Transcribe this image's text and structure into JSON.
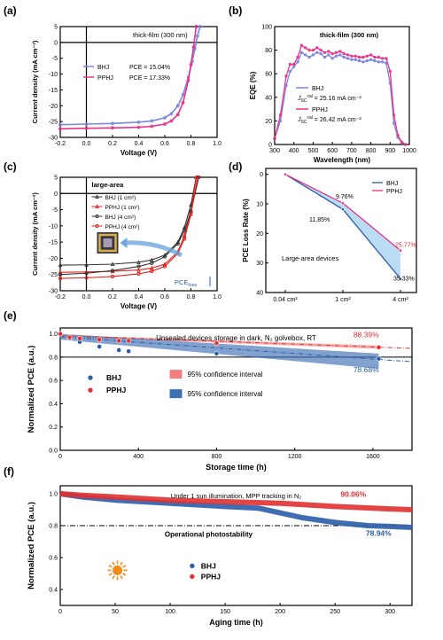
{
  "chart_data": [
    {
      "panel": "(a)",
      "type": "line",
      "title": "thick-film (300 nm)",
      "xlabel": "Voltage (V)",
      "ylabel": "Current density (mA cm⁻²)",
      "xlim": [
        -0.2,
        1.0
      ],
      "ylim": [
        -30,
        5
      ],
      "xticks": [
        "-0.2",
        "0.0",
        "0.2",
        "0.4",
        "0.6",
        "0.8",
        "1.0"
      ],
      "yticks": [
        "5",
        "0",
        "-5",
        "-10",
        "-15",
        "-20",
        "-25",
        "-30"
      ],
      "legend": [
        {
          "name": "BHJ",
          "pce": "PCE = 15.04%"
        },
        {
          "name": "PPHJ",
          "pce": "PCE = 17.33%"
        }
      ],
      "series": [
        {
          "name": "BHJ",
          "color": "#7b86e0",
          "x": [
            -0.2,
            0.0,
            0.2,
            0.4,
            0.5,
            0.6,
            0.65,
            0.7,
            0.74,
            0.78,
            0.81,
            0.83,
            0.85,
            0.87
          ],
          "y": [
            -26.0,
            -25.8,
            -25.6,
            -25.2,
            -24.8,
            -23.8,
            -22.5,
            -20.0,
            -16.5,
            -11.0,
            -6.0,
            -2.0,
            2.0,
            5.0
          ]
        },
        {
          "name": "PPHJ",
          "color": "#e8338a",
          "x": [
            -0.2,
            0.0,
            0.2,
            0.4,
            0.5,
            0.6,
            0.65,
            0.7,
            0.74,
            0.78,
            0.8,
            0.82,
            0.84
          ],
          "y": [
            -27.3,
            -27.1,
            -27.0,
            -26.8,
            -26.5,
            -25.8,
            -24.8,
            -22.8,
            -19.0,
            -12.0,
            -7.0,
            -1.5,
            5.0
          ]
        }
      ]
    },
    {
      "panel": "(b)",
      "type": "line",
      "title": "thick-film (300 nm)",
      "xlabel": "Wavelength (nm)",
      "ylabel": "EQE (%)",
      "xlim": [
        300,
        1000
      ],
      "ylim": [
        0,
        100
      ],
      "xticks": [
        "300",
        "400",
        "500",
        "600",
        "700",
        "800",
        "900",
        "1000"
      ],
      "yticks": [
        "0",
        "20",
        "40",
        "60",
        "80",
        "100"
      ],
      "legend": [
        {
          "name": "BHJ",
          "jsc_label": "J",
          "jsc_sub": "SC",
          "jsc_sup": "cal",
          "jsc_value": "= 25.16 mA cm⁻²"
        },
        {
          "name": "PPHJ",
          "jsc_label": "J",
          "jsc_sub": "SC",
          "jsc_sup": "cal",
          "jsc_value": "= 26.42 mA cm⁻²"
        }
      ],
      "series": [
        {
          "name": "BHJ",
          "color": "#7b86e0",
          "x": [
            300,
            330,
            360,
            380,
            400,
            420,
            440,
            460,
            480,
            500,
            520,
            540,
            560,
            580,
            600,
            620,
            640,
            660,
            680,
            700,
            720,
            740,
            760,
            780,
            800,
            820,
            840,
            860,
            880,
            900,
            920,
            940,
            960,
            980
          ],
          "y": [
            5,
            20,
            50,
            62,
            66,
            70,
            78,
            76,
            74,
            76,
            78,
            77,
            74,
            76,
            73,
            75,
            76,
            74,
            73,
            72,
            72,
            71,
            70,
            71,
            72,
            71,
            70,
            70,
            69,
            52,
            18,
            6,
            2,
            0
          ]
        },
        {
          "name": "PPHJ",
          "color": "#e8338a",
          "x": [
            300,
            330,
            360,
            380,
            400,
            420,
            440,
            460,
            480,
            500,
            520,
            540,
            560,
            580,
            600,
            620,
            640,
            660,
            680,
            700,
            720,
            740,
            760,
            780,
            800,
            820,
            840,
            860,
            880,
            900,
            920,
            940,
            960,
            980
          ],
          "y": [
            5,
            25,
            58,
            68,
            68,
            74,
            84,
            82,
            80,
            80,
            82,
            80,
            78,
            79,
            77,
            78,
            79,
            77,
            76,
            75,
            75,
            74,
            74,
            75,
            76,
            74,
            74,
            73,
            73,
            62,
            25,
            8,
            2,
            0
          ]
        }
      ]
    },
    {
      "panel": "(c)",
      "type": "line",
      "title": "large-area",
      "xlabel": "Voltage (V)",
      "ylabel": "Current density (mA cm⁻²)",
      "xlim": [
        -0.2,
        1.0
      ],
      "ylim": [
        -30,
        5
      ],
      "xticks": [
        "-0.2",
        "0.0",
        "0.2",
        "0.4",
        "0.6",
        "0.8",
        "1.0"
      ],
      "yticks": [
        "5",
        "0",
        "-5",
        "-10",
        "-15",
        "-20",
        "-25",
        "-30"
      ],
      "annotation": {
        "text": "PCE",
        "sub": "loss"
      },
      "series": [
        {
          "name": "BHJ (1 cm²)",
          "color": "#333333",
          "marker": "triangle",
          "x": [
            -0.2,
            0.0,
            0.2,
            0.4,
            0.5,
            0.6,
            0.7,
            0.75,
            0.8,
            0.84
          ],
          "y": [
            -22.1,
            -22.0,
            -21.8,
            -21.2,
            -20.5,
            -19.0,
            -15.0,
            -10.5,
            -3.5,
            5.0
          ]
        },
        {
          "name": "PPHJ (1 cm²)",
          "color": "#e02020",
          "marker": "triangle",
          "x": [
            -0.2,
            0.0,
            0.2,
            0.4,
            0.5,
            0.6,
            0.7,
            0.75,
            0.8,
            0.84
          ],
          "y": [
            -24.3,
            -24.2,
            -24.0,
            -23.6,
            -23.0,
            -21.8,
            -18.0,
            -13.0,
            -5.5,
            5.0
          ]
        },
        {
          "name": "BHJ (4 cm²)",
          "color": "#333333",
          "marker": "circle",
          "x": [
            -0.2,
            0.0,
            0.2,
            0.4,
            0.5,
            0.6,
            0.7,
            0.75,
            0.8,
            0.86
          ],
          "y": [
            -25.0,
            -24.6,
            -23.8,
            -22.5,
            -21.5,
            -19.5,
            -15.5,
            -11.5,
            -5.5,
            5.0
          ]
        },
        {
          "name": "PPHJ (4 cm²)",
          "color": "#e02020",
          "marker": "circle",
          "x": [
            -0.2,
            0.0,
            0.2,
            0.4,
            0.5,
            0.6,
            0.7,
            0.75,
            0.8,
            0.85
          ],
          "y": [
            -26.2,
            -26.0,
            -25.6,
            -24.8,
            -24.0,
            -22.5,
            -18.5,
            -14.0,
            -6.5,
            5.0
          ]
        }
      ]
    },
    {
      "panel": "(d)",
      "type": "line",
      "xlabel": "",
      "ylabel": "PCE Loss Rate (%)",
      "categories": [
        "0.04 cm²",
        "1 cm²",
        "4 cm²"
      ],
      "ylim": [
        0,
        40
      ],
      "yticks": [
        "0",
        "10",
        "20",
        "30",
        "40"
      ],
      "annotation": "Large-area devices",
      "series": [
        {
          "name": "BHJ",
          "color": "#2b5ca8",
          "values": [
            0,
            11.85,
            35.33
          ],
          "labels": [
            "",
            "11.85%",
            "35.33%"
          ]
        },
        {
          "name": "PPHJ",
          "color": "#e8338a",
          "values": [
            0,
            9.76,
            25.77
          ],
          "labels": [
            "",
            "9.76%",
            "25.77%"
          ]
        }
      ]
    },
    {
      "panel": "(e)",
      "type": "scatter",
      "title": "Unsealed devices storage in dark, N₂ golvebox, RT",
      "xlabel": "Storage time (h)",
      "ylabel": "Normalized PCE (a.u.)",
      "xlim": [
        0,
        1800
      ],
      "ylim": [
        0.0,
        1.05
      ],
      "xticks": [
        "0",
        "400",
        "800",
        "1200",
        "1600"
      ],
      "yticks": [
        "0.0",
        "0.2",
        "0.4",
        "0.6",
        "0.8",
        "1.0"
      ],
      "final_labels": {
        "PPHJ": "88.39%",
        "BHJ": "78.68%"
      },
      "legend_ci": [
        "95% confidence interval",
        "95% confidence interval"
      ],
      "series": [
        {
          "name": "BHJ",
          "color": "#2b5ca8",
          "x": [
            0,
            48,
            100,
            200,
            300,
            350,
            800,
            1630
          ],
          "y": [
            1.0,
            0.96,
            0.93,
            0.89,
            0.86,
            0.85,
            0.83,
            0.787
          ]
        },
        {
          "name": "PPHJ",
          "color": "#e03030",
          "x": [
            0,
            48,
            100,
            200,
            300,
            350,
            800,
            1630
          ],
          "y": [
            1.0,
            0.97,
            0.96,
            0.95,
            0.94,
            0.94,
            0.92,
            0.884
          ]
        }
      ]
    },
    {
      "panel": "(f)",
      "type": "scatter",
      "title": "Under 1 sun illumination, MPP tracking in N₂",
      "xlabel": "Aging time (h)",
      "ylabel": "Normalized PCE (a.u.)",
      "xlim": [
        0,
        320
      ],
      "ylim": [
        0.3,
        1.05
      ],
      "xticks": [
        "0",
        "50",
        "100",
        "150",
        "200",
        "250",
        "300"
      ],
      "yticks": [
        "0.4",
        "0.6",
        "0.8",
        "1.0"
      ],
      "annotation": "Operational photostability",
      "final_labels": {
        "PPHJ": "90.06%",
        "BHJ": "78.94%"
      },
      "series": [
        {
          "name": "BHJ",
          "color": "#2b5ca8",
          "x": [
            0,
            20,
            50,
            100,
            150,
            180,
            200,
            220,
            250,
            280,
            300,
            320
          ],
          "y": [
            1.0,
            0.98,
            0.96,
            0.94,
            0.92,
            0.91,
            0.88,
            0.85,
            0.82,
            0.8,
            0.795,
            0.789
          ]
        },
        {
          "name": "PPHJ",
          "color": "#e03030",
          "x": [
            0,
            20,
            50,
            100,
            150,
            200,
            250,
            300,
            320
          ],
          "y": [
            1.0,
            0.99,
            0.98,
            0.96,
            0.95,
            0.94,
            0.92,
            0.905,
            0.9
          ]
        }
      ]
    }
  ]
}
